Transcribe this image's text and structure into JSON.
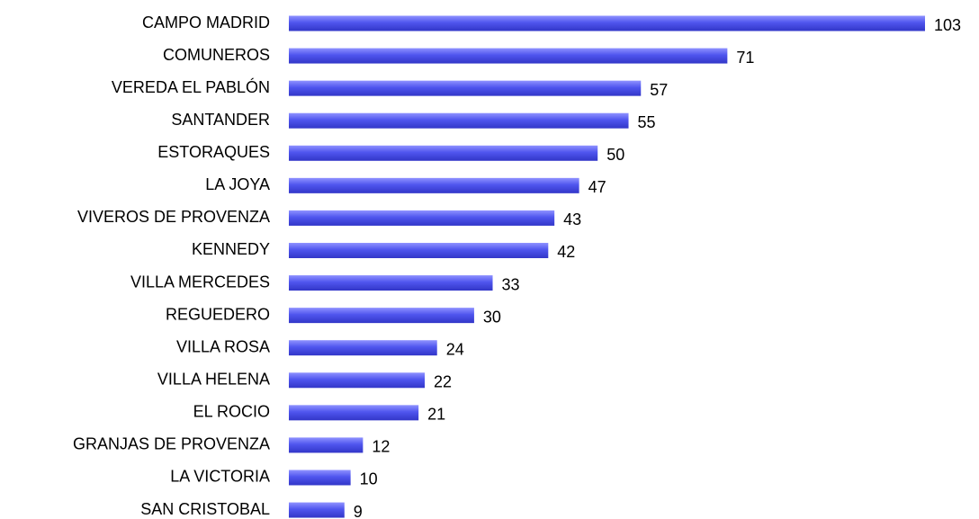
{
  "chart_data": {
    "type": "barh",
    "categories": [
      "CAMPO MADRID",
      "COMUNEROS",
      "VEREDA EL PABLÓN",
      "SANTANDER",
      "ESTORAQUES",
      "LA JOYA",
      "VIVEROS DE PROVENZA",
      "KENNEDY",
      "VILLA MERCEDES",
      "REGUEDERO",
      "VILLA ROSA",
      "VILLA HELENA",
      "EL ROCIO",
      "GRANJAS DE PROVENZA",
      "LA VICTORIA",
      "SAN CRISTOBAL"
    ],
    "values": [
      103,
      71,
      57,
      55,
      50,
      47,
      43,
      42,
      33,
      30,
      24,
      22,
      21,
      12,
      10,
      9
    ],
    "color": "#4f55ee"
  }
}
